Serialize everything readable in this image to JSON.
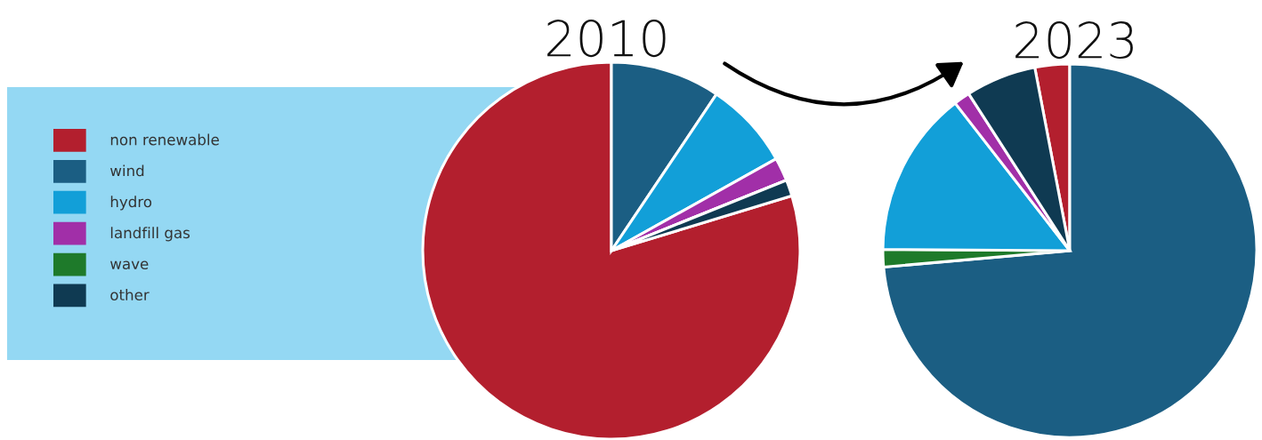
{
  "chart_data": [
    {
      "type": "pie",
      "title": "2010",
      "legend": "left",
      "categories": [
        "non renewable",
        "wind",
        "hydro",
        "landfill gas",
        "wave",
        "other"
      ],
      "values": [
        79.7,
        9.4,
        7.5,
        2.0,
        0,
        1.4
      ],
      "colors": [
        "#b31f2e",
        "#1b5e83",
        "#129fd8",
        "#a12fa8",
        "#1e7a2a",
        "#0f3a52"
      ]
    },
    {
      "type": "pie",
      "title": "2023",
      "categories": [
        null,
        null,
        null,
        null,
        null,
        null
      ],
      "values": [
        3.0,
        73.6,
        1.5,
        14.4,
        1.4,
        6.1
      ],
      "colors": [
        "#b31f2e",
        "#1b5e83",
        "#1e7a2a",
        "#129fd8",
        "#a12fa8",
        "#0f3a52"
      ]
    }
  ]
}
